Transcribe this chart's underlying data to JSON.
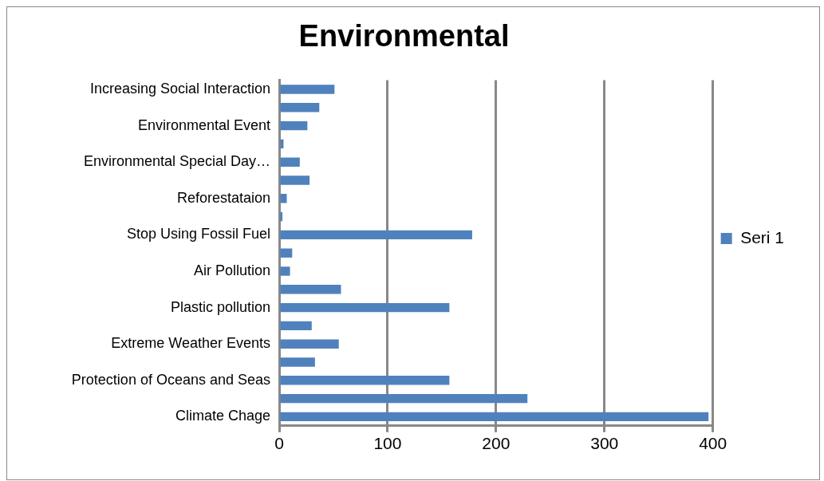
{
  "chart_data": {
    "type": "bar",
    "orientation": "horizontal",
    "title": "Environmental",
    "categories": [
      "Increasing Social Interaction",
      null,
      "Environmental Event",
      null,
      "Environmental Special Day…",
      null,
      "Reforestataion",
      null,
      "Stop Using Fossil Fuel",
      null,
      "Air Pollution",
      null,
      "Plastic pollution",
      null,
      "Extreme Weather Events",
      null,
      "Protection of Oceans and Seas",
      null,
      "Climate Chage"
    ],
    "series": [
      {
        "name": "Seri 1",
        "color": "#4f81bd",
        "values": [
          51,
          37,
          26,
          4,
          19,
          28,
          7,
          3,
          178,
          12,
          10,
          57,
          157,
          30,
          55,
          33,
          157,
          229,
          396
        ]
      }
    ],
    "xlim": [
      0,
      400
    ],
    "xticks": [
      0,
      100,
      200,
      300,
      400
    ],
    "grid": "x",
    "legend": "right"
  }
}
